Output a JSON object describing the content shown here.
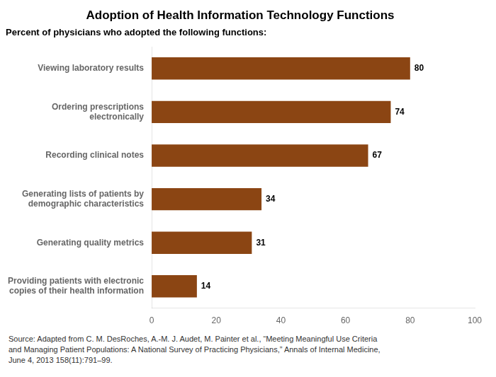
{
  "chart_data": {
    "type": "bar",
    "orientation": "horizontal",
    "title": "Adoption of Health Information Technology Functions",
    "subtitle": "Percent of physicians who adopted the following functions:",
    "categories": [
      "Providing patients with electronic\ncopies of their health information",
      "Generating quality metrics",
      "Generating lists of patients by\ndemographic characteristics",
      "Recording clinical notes",
      "Ordering prescriptions\nelectronically",
      "Viewing laboratory results"
    ],
    "values": [
      14,
      31,
      34,
      67,
      74,
      80
    ],
    "color": "#8B4513",
    "xlim": [
      0,
      100
    ],
    "xticks": [
      0,
      20,
      40,
      60,
      80,
      100
    ],
    "grid": false,
    "data_labels": true,
    "source": "Source: Adapted from C. M. DesRoches, A.-M. J. Audet, M. Painter et al., “Meeting Meaningful Use Criteria\nand Managing Patient Populations: A National Survey of Practicing Physicians,” Annals of Internal Medicine,\nJune 4, 2013 158(11):791–99."
  }
}
